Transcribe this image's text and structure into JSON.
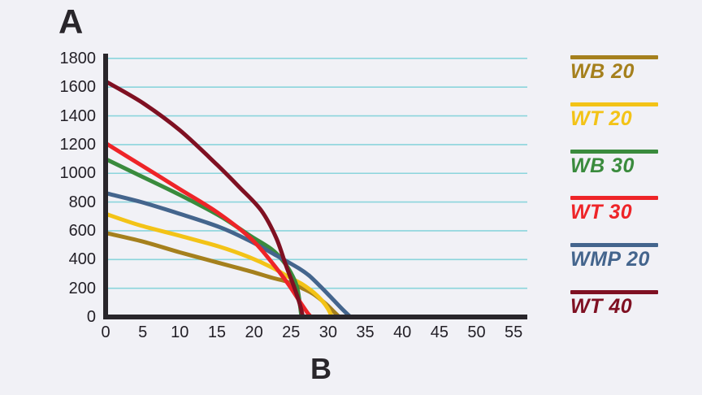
{
  "titles": {
    "y_axis_corner": "A",
    "x_axis_label": "B"
  },
  "colors": {
    "background": "#f1f1f6",
    "axis": "#29262b",
    "grid": "#8bd5dc",
    "tick_text": "#221f26"
  },
  "legend": {
    "position": "right",
    "items": [
      {
        "label": "WB 20",
        "color": "#a5801d"
      },
      {
        "label": "WT 20",
        "color": "#f3c317"
      },
      {
        "label": "WB 30",
        "color": "#3a8b3d"
      },
      {
        "label": "WT 30",
        "color": "#ee2428"
      },
      {
        "label": "WMP 20",
        "color": "#44658d"
      },
      {
        "label": "WT 40",
        "color": "#7f1022"
      }
    ]
  },
  "chart_data": {
    "type": "line",
    "title": "",
    "xlabel": "B",
    "ylabel": "A",
    "x_ticks": [
      0,
      5,
      10,
      15,
      20,
      25,
      30,
      35,
      40,
      45,
      50,
      55
    ],
    "y_ticks": [
      0,
      200,
      400,
      600,
      800,
      1000,
      1200,
      1400,
      1600,
      1800
    ],
    "xlim": [
      0,
      57
    ],
    "ylim": [
      0,
      1800
    ],
    "grid": "horizontal-only",
    "legend_position": "right",
    "series": [
      {
        "name": "WB 20",
        "color": "#a5801d",
        "points": [
          [
            0,
            585
          ],
          [
            5,
            525
          ],
          [
            10,
            450
          ],
          [
            15,
            380
          ],
          [
            19.5,
            318
          ],
          [
            22.5,
            272
          ],
          [
            24.5,
            245
          ],
          [
            26.5,
            200
          ],
          [
            28,
            160
          ],
          [
            29.6,
            95
          ],
          [
            30.7,
            40
          ],
          [
            31.5,
            0
          ]
        ]
      },
      {
        "name": "WT 20",
        "color": "#f3c317",
        "points": [
          [
            0,
            718
          ],
          [
            4.5,
            640
          ],
          [
            10,
            565
          ],
          [
            15.3,
            490
          ],
          [
            19.4,
            415
          ],
          [
            22.6,
            340
          ],
          [
            24.5,
            283
          ],
          [
            26.6,
            225
          ],
          [
            28.1,
            168
          ],
          [
            29.2,
            112
          ],
          [
            30,
            55
          ],
          [
            30.5,
            0
          ]
        ]
      },
      {
        "name": "WB 30",
        "color": "#3a8b3d",
        "points": [
          [
            0,
            1100
          ],
          [
            5,
            975
          ],
          [
            10,
            850
          ],
          [
            15.5,
            700
          ],
          [
            19.5,
            565
          ],
          [
            22.4,
            470
          ],
          [
            24,
            385
          ],
          [
            25.2,
            285
          ],
          [
            25.9,
            185
          ],
          [
            26.4,
            0
          ]
        ]
      },
      {
        "name": "WMP 20",
        "color": "#44658d",
        "points": [
          [
            0,
            862
          ],
          [
            5,
            797
          ],
          [
            10,
            718
          ],
          [
            15.5,
            623
          ],
          [
            19.5,
            528
          ],
          [
            22.8,
            434
          ],
          [
            26,
            340
          ],
          [
            27.5,
            285
          ],
          [
            29,
            210
          ],
          [
            30.5,
            130
          ],
          [
            31.9,
            55
          ],
          [
            33,
            0
          ]
        ]
      },
      {
        "name": "WT 30",
        "color": "#ee2428",
        "points": [
          [
            0,
            1210
          ],
          [
            5,
            1050
          ],
          [
            10,
            890
          ],
          [
            15,
            730
          ],
          [
            19.5,
            550
          ],
          [
            22.4,
            380
          ],
          [
            24.6,
            230
          ],
          [
            26.2,
            105
          ],
          [
            27.2,
            30
          ],
          [
            27.7,
            0
          ]
        ]
      },
      {
        "name": "WT 40",
        "color": "#7f1022",
        "points": [
          [
            0,
            1640
          ],
          [
            5,
            1490
          ],
          [
            10,
            1300
          ],
          [
            15,
            1060
          ],
          [
            18,
            905
          ],
          [
            21,
            740
          ],
          [
            23,
            550
          ],
          [
            24.3,
            360
          ],
          [
            25.4,
            210
          ],
          [
            26.2,
            85
          ],
          [
            26.6,
            0
          ]
        ]
      }
    ]
  }
}
